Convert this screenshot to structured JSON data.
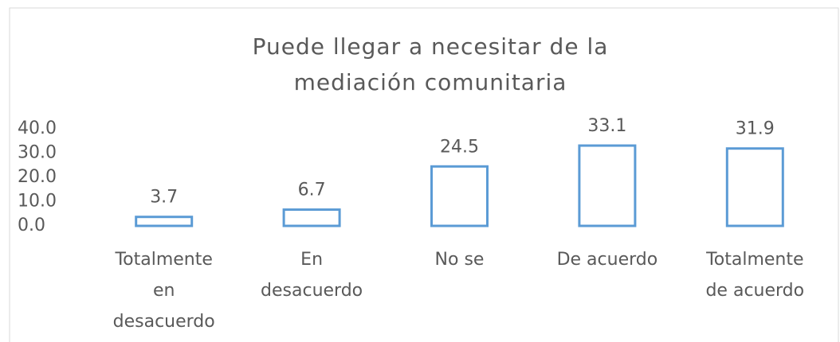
{
  "chart_data": {
    "type": "bar",
    "title": "Puede llegar a necesitar de la mediación comunitaria",
    "categories": [
      "Totalmente en desacuerdo",
      "En desacuerdo",
      "No se",
      "De acuerdo",
      "Totalmente de acuerdo"
    ],
    "values": [
      3.7,
      6.7,
      24.5,
      33.1,
      31.9
    ],
    "color": "#5b9bd5",
    "ylim": [
      0,
      40
    ],
    "yticks": [
      {
        "value": 0,
        "label": "0.0"
      },
      {
        "value": 10,
        "label": "10.0"
      },
      {
        "value": 20,
        "label": "20.0"
      },
      {
        "value": 30,
        "label": "30.0"
      },
      {
        "value": 40,
        "label": "40.0"
      }
    ],
    "grid": false
  }
}
